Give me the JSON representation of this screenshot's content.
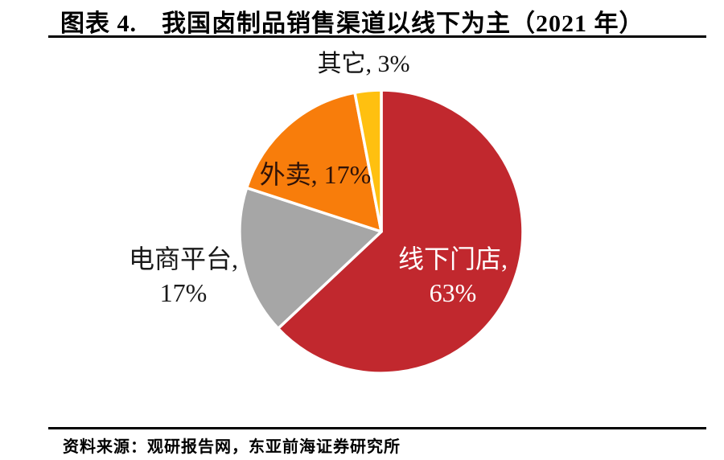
{
  "title": {
    "text": "图表 4.　我国卤制品销售渠道以线下为主（2021 年）"
  },
  "footer": {
    "source_text": "资料来源：观研报告网，东亚前海证券研究所"
  },
  "chart_data": {
    "type": "pie",
    "title": "我国卤制品销售渠道以线下为主（2021 年）",
    "units": "%",
    "start_angle_deg": 0,
    "direction": "clockwise",
    "legend": "none",
    "categories": [
      "线下门店",
      "电商平台",
      "外卖",
      "其它"
    ],
    "values": [
      63,
      17,
      17,
      3
    ],
    "slices": [
      {
        "label": "线下门店",
        "value": 63,
        "color": "#c1282e",
        "label_text": "线下门店,\n63%",
        "label_color": "#ffffff"
      },
      {
        "label": "电商平台",
        "value": 17,
        "color": "#a6a6a6",
        "label_text": "电商平台,\n17%",
        "label_color": "#1a1a1a"
      },
      {
        "label": "外卖",
        "value": 17,
        "color": "#f87d0b",
        "label_text": "外卖, 17%",
        "label_color": "#2e1208"
      },
      {
        "label": "其它",
        "value": 3,
        "color": "#ffc010",
        "label_text": "其它, 3%",
        "label_color": "#111111"
      }
    ],
    "slice_border_color": "#ffffff"
  }
}
